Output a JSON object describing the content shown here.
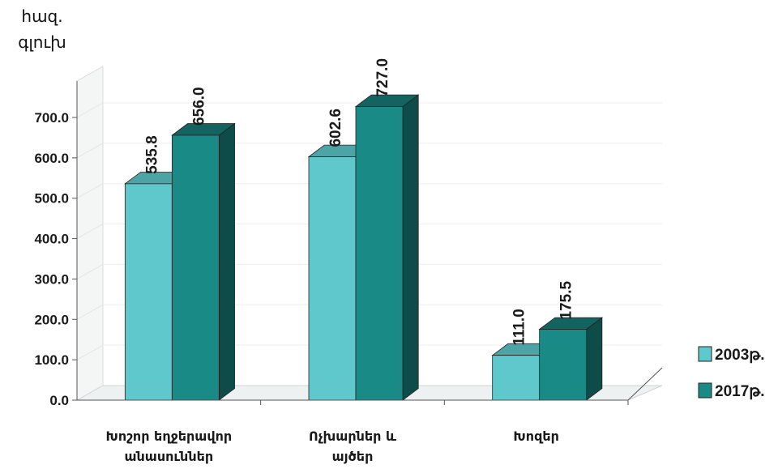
{
  "chart_data": {
    "type": "bar",
    "unit_label": [
      "հազ.",
      "գլուխ"
    ],
    "categories": [
      [
        "Խոշոր եղջերավոր",
        "անասուններ"
      ],
      [
        "Ոչխարներ և",
        "այծեր"
      ],
      [
        "Խոզեր"
      ]
    ],
    "series": [
      {
        "name": "2003թ.",
        "values": [
          535.8,
          602.6,
          111.0
        ],
        "value_labels": [
          "535.8",
          "602.6",
          "111.0"
        ],
        "color": "#5ec8cc"
      },
      {
        "name": "2017թ.",
        "values": [
          656.0,
          727.0,
          175.5
        ],
        "value_labels": [
          "656.0",
          "727.0",
          "175.5"
        ],
        "color": "#1a8a86"
      }
    ],
    "y_ticks": [
      "0.0",
      "100.0",
      "200.0",
      "300.0",
      "400.0",
      "500.0",
      "600.0",
      "700.0"
    ],
    "ylim": [
      0,
      700
    ],
    "grid": true,
    "legend_position": "right"
  }
}
